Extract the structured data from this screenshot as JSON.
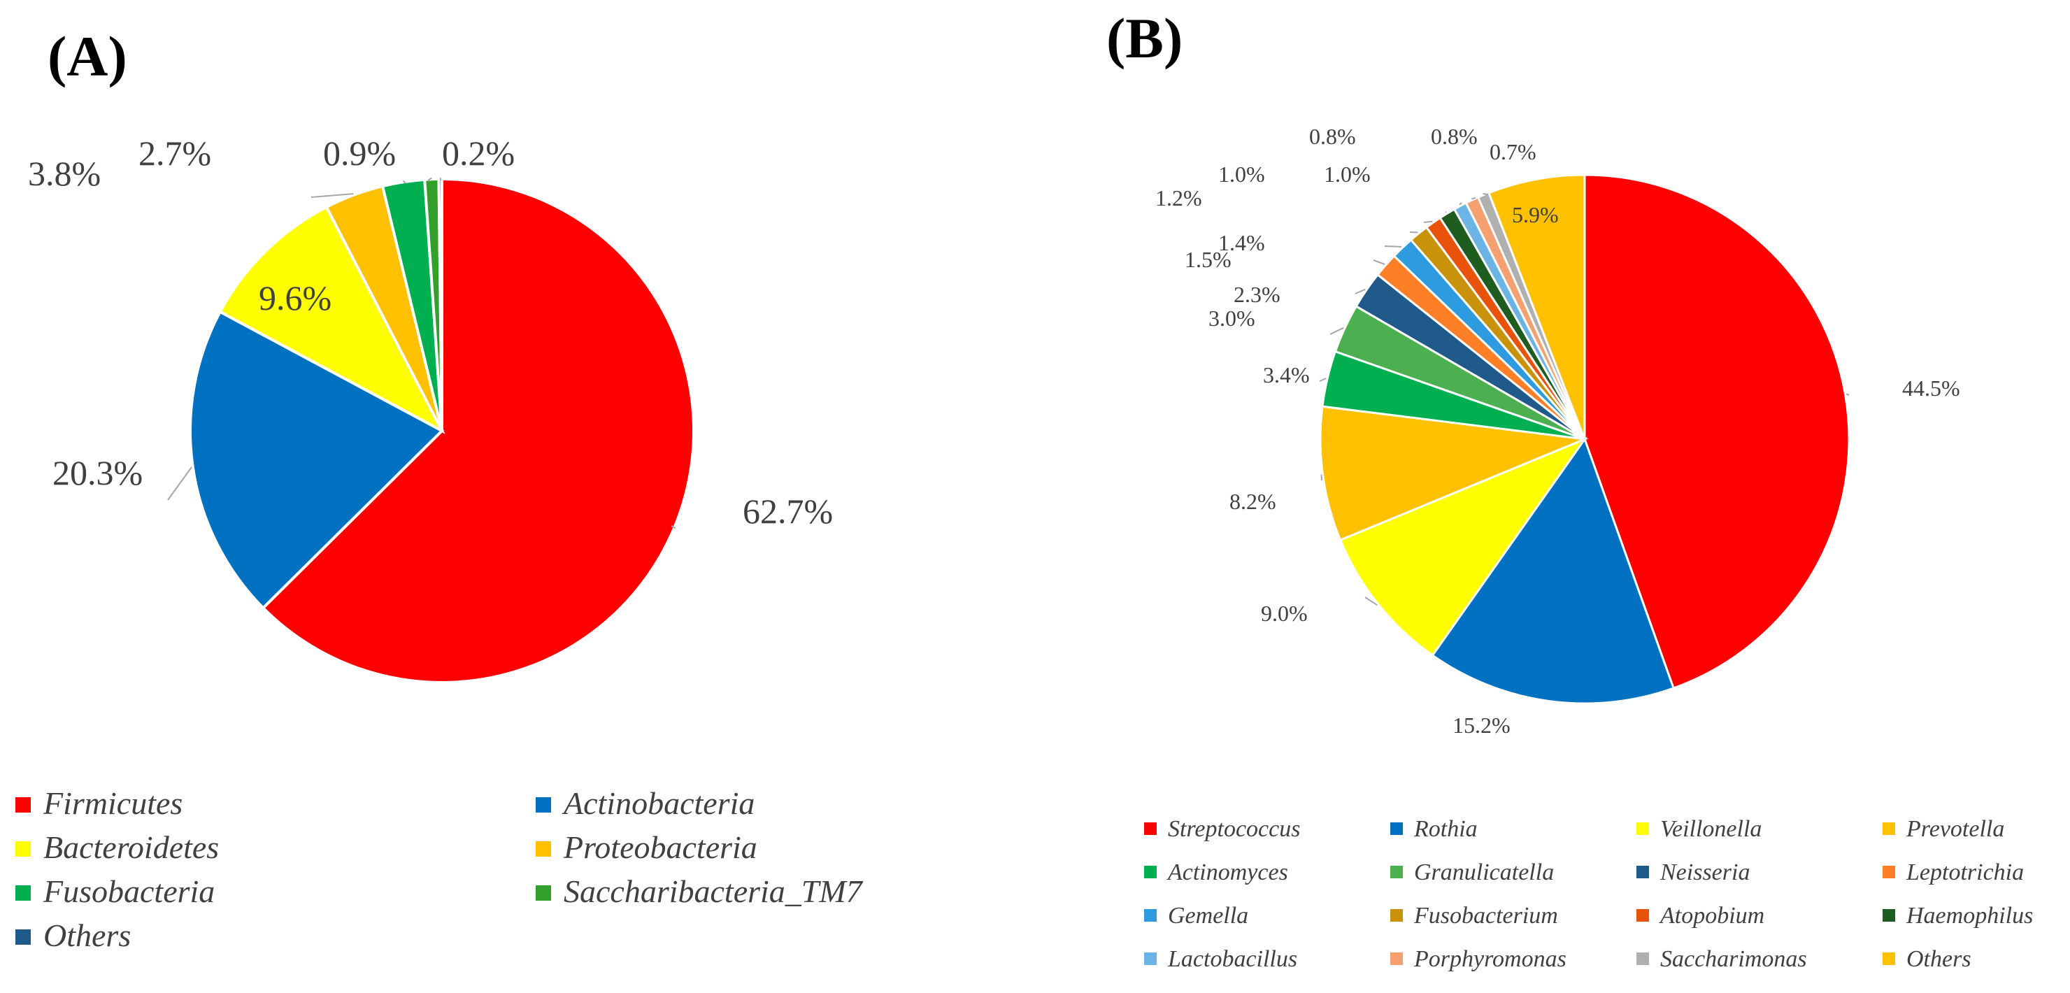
{
  "chart_data": [
    {
      "panel": "(A)",
      "type": "pie",
      "categories": [
        "Firmicutes",
        "Actinobacteria",
        "Bacteroidetes",
        "Proteobacteria",
        "Fusobacteria",
        "Saccharibacteria_TM7",
        "Others"
      ],
      "values": [
        62.7,
        20.3,
        9.6,
        3.8,
        2.7,
        0.9,
        0.2
      ],
      "labels": [
        "62.7%",
        "20.3%",
        "9.6%",
        "3.8%",
        "2.7%",
        "0.9%",
        "0.2%"
      ],
      "colors": [
        "#FF0000",
        "#0070C0",
        "#FFFF00",
        "#FFC000",
        "#00B050",
        "#33A02C",
        "#1F5A8A"
      ],
      "legend_position": "bottom"
    },
    {
      "panel": "(B)",
      "type": "pie",
      "categories": [
        "Streptococcus",
        "Rothia",
        "Veillonella",
        "Prevotella",
        "Actinomyces",
        "Granulicatella",
        "Neisseria",
        "Leptotrichia",
        "Gemella",
        "Fusobacterium",
        "Atopobium",
        "Haemophilus",
        "Lactobacillus",
        "Porphyromonas",
        "Saccharimonas",
        "Others"
      ],
      "values": [
        44.5,
        15.2,
        9.0,
        8.2,
        3.4,
        3.0,
        2.3,
        1.5,
        1.4,
        1.2,
        1.0,
        1.0,
        0.8,
        0.8,
        0.7,
        5.9
      ],
      "labels": [
        "44.5%",
        "15.2%",
        "9.0%",
        "8.2%",
        "3.4%",
        "3.0%",
        "2.3%",
        "1.5%",
        "1.4%",
        "1.2%",
        "1.0%",
        "1.0%",
        "0.8%",
        "0.8%",
        "0.7%",
        "5.9%"
      ],
      "colors": [
        "#FF0000",
        "#0070C0",
        "#FFFF00",
        "#FFC000",
        "#00B050",
        "#4CAF50",
        "#1F5A8A",
        "#FF7F27",
        "#2E9BE0",
        "#C8920A",
        "#E8520A",
        "#1E5C20",
        "#6CB4E4",
        "#F4A070",
        "#B0B0B0",
        "#FFC000"
      ],
      "legend_position": "bottom"
    }
  ]
}
